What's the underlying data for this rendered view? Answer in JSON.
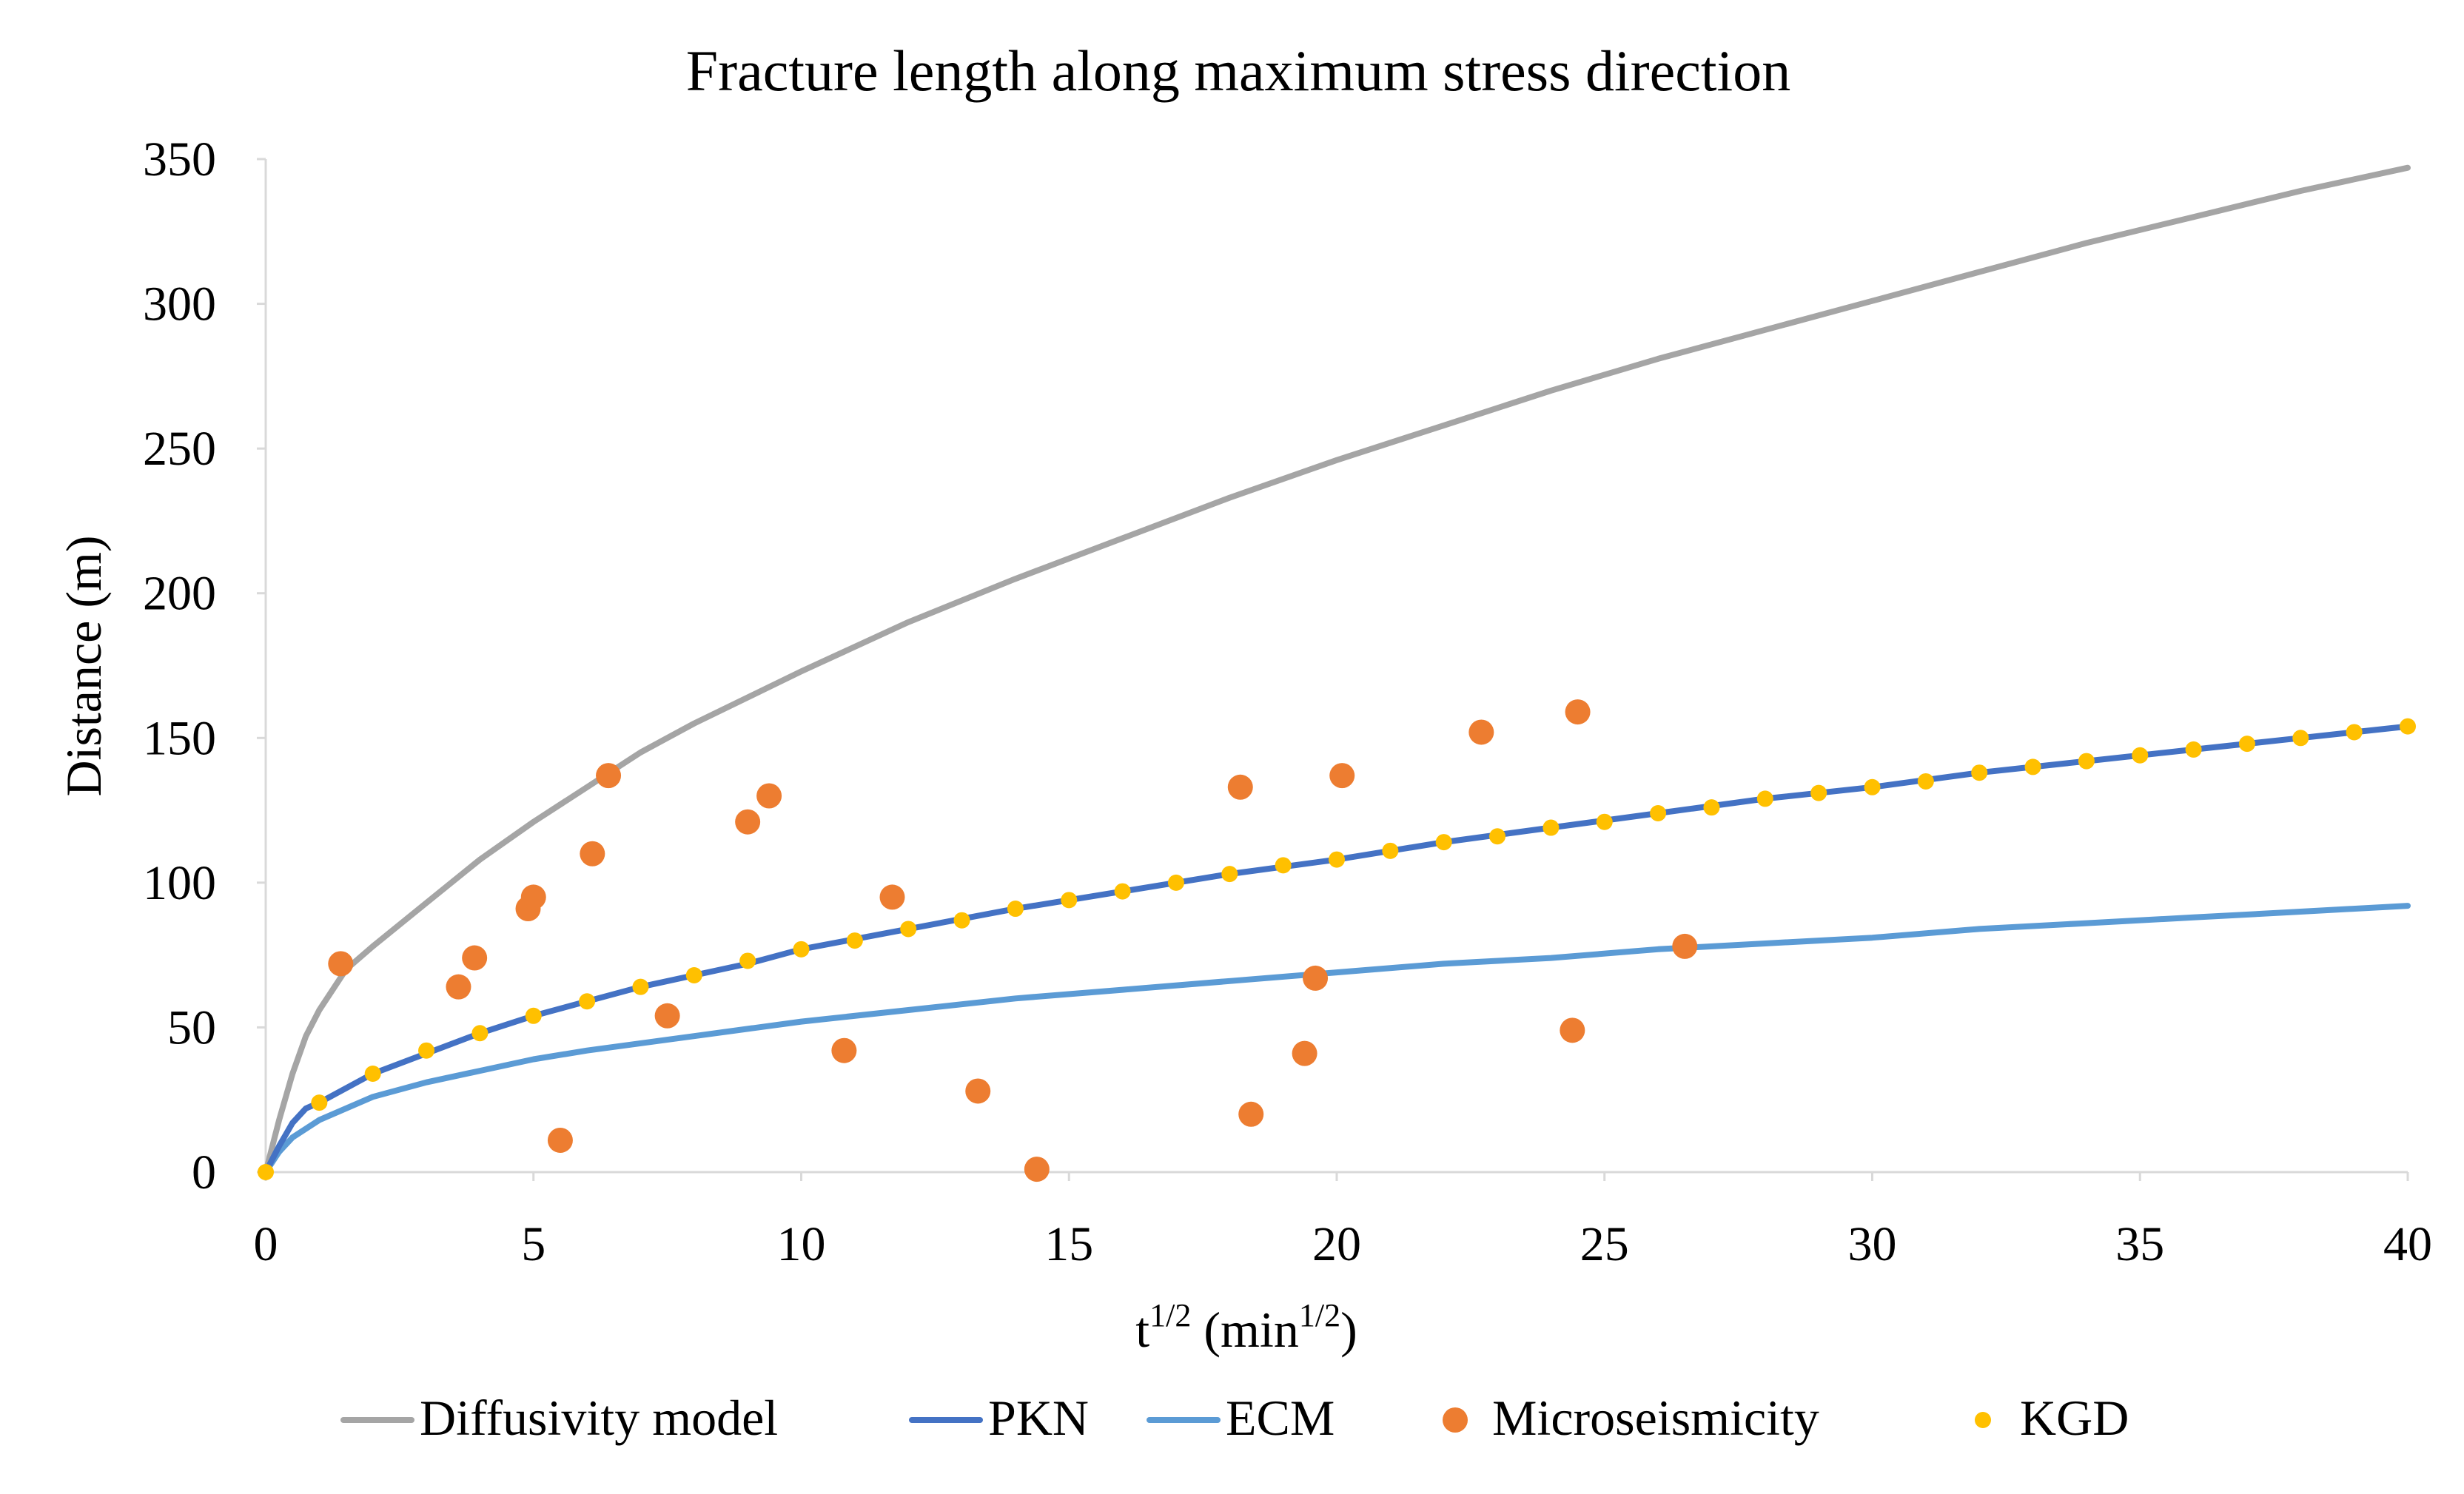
{
  "chart_data": {
    "type": "line",
    "title": "Fracture length along maximum stress direction",
    "xlabel": "t1/2 (min1/2)",
    "xlabel_parts": {
      "base": "t",
      "exp": "1/2",
      "mid": " (min",
      "exp2": "1/2",
      "end": ")"
    },
    "ylabel": "Distance (m)",
    "xlim": [
      0,
      40
    ],
    "ylim": [
      0,
      350
    ],
    "xticks": [
      0,
      5,
      10,
      15,
      20,
      25,
      30,
      35,
      40
    ],
    "yticks": [
      0,
      50,
      100,
      150,
      200,
      250,
      300,
      350
    ],
    "grid": false,
    "legend_position": "bottom",
    "series": [
      {
        "name": "Diffusivity model",
        "kind": "line",
        "color": "#a5a5a5",
        "x": [
          0,
          0.25,
          0.5,
          0.75,
          1,
          1.5,
          2,
          3,
          4,
          5,
          6,
          7,
          8,
          10,
          12,
          14,
          16,
          18,
          20,
          22,
          24,
          26,
          28,
          30,
          32,
          34,
          36,
          38,
          40
        ],
        "y": [
          0,
          18,
          34,
          47,
          56,
          70,
          78,
          93,
          108,
          121,
          133,
          145,
          155,
          173,
          190,
          205,
          219,
          233,
          246,
          258,
          270,
          281,
          291,
          301,
          311,
          321,
          330,
          339,
          347
        ]
      },
      {
        "name": "PKN",
        "kind": "line",
        "color": "#4472c4",
        "x": [
          0,
          0.25,
          0.5,
          0.75,
          1,
          2,
          3,
          4,
          5,
          6,
          7,
          8,
          9,
          10,
          12,
          14,
          16,
          18,
          20,
          22,
          24,
          26,
          28,
          30,
          32,
          34,
          36,
          38,
          40
        ],
        "y": [
          0,
          9,
          17,
          22,
          24,
          34,
          41,
          48,
          54,
          59,
          64,
          68,
          72,
          77,
          84,
          91,
          97,
          103,
          108,
          114,
          119,
          124,
          129,
          133,
          138,
          142,
          146,
          150,
          154
        ]
      },
      {
        "name": "ECM",
        "kind": "line",
        "color": "#5b9bd5",
        "x": [
          0,
          0.25,
          0.5,
          1,
          1.5,
          2,
          3,
          4,
          5,
          6,
          8,
          10,
          12,
          14,
          16,
          18,
          20,
          22,
          24,
          26,
          28,
          30,
          32,
          34,
          36,
          38,
          40
        ],
        "y": [
          0,
          7,
          12,
          18,
          22,
          26,
          31,
          35,
          39,
          42,
          47,
          52,
          56,
          60,
          63,
          66,
          69,
          72,
          74,
          77,
          79,
          81,
          84,
          86,
          88,
          90,
          92
        ]
      },
      {
        "name": "Microseismicity",
        "kind": "scatter",
        "color": "#ed7d31",
        "x": [
          1.4,
          3.6,
          3.9,
          4.9,
          5.0,
          5.5,
          6.1,
          6.4,
          7.5,
          9.0,
          9.4,
          10.8,
          11.7,
          13.3,
          14.4,
          18.2,
          18.4,
          19.4,
          19.6,
          20.1,
          22.7,
          24.4,
          24.5,
          26.5
        ],
        "y": [
          72,
          64,
          74,
          91,
          95,
          11,
          110,
          137,
          54,
          121,
          130,
          42,
          95,
          28,
          1,
          133,
          20,
          41,
          67,
          137,
          152,
          49,
          159,
          78
        ]
      },
      {
        "name": "KGD",
        "kind": "scatter",
        "color": "#ffc000",
        "x": [
          0,
          1,
          2,
          3,
          4,
          5,
          6,
          7,
          8,
          9,
          10,
          11,
          12,
          13,
          14,
          15,
          16,
          17,
          18,
          19,
          20,
          21,
          22,
          23,
          24,
          25,
          26,
          27,
          28,
          29,
          30,
          31,
          32,
          33,
          34,
          35,
          36,
          37,
          38,
          39,
          40
        ],
        "y": [
          0,
          24,
          34,
          42,
          48,
          54,
          59,
          64,
          68,
          73,
          77,
          80,
          84,
          87,
          91,
          94,
          97,
          100,
          103,
          106,
          108,
          111,
          114,
          116,
          119,
          121,
          124,
          126,
          129,
          131,
          133,
          135,
          138,
          140,
          142,
          144,
          146,
          148,
          150,
          152,
          154
        ]
      }
    ]
  }
}
